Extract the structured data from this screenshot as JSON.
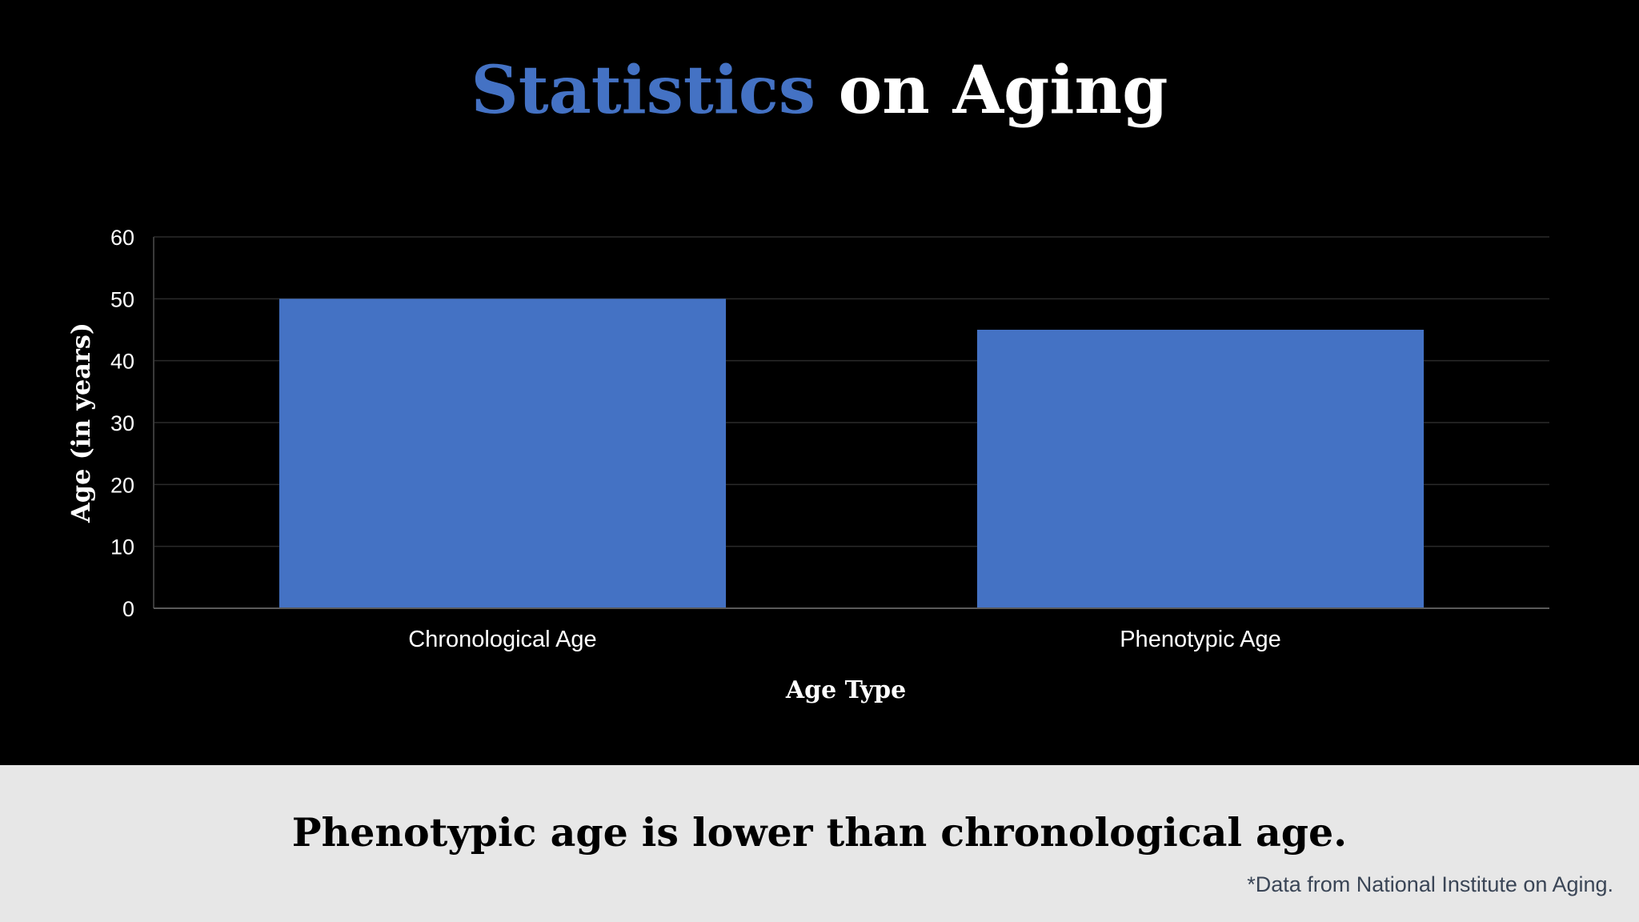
{
  "slide": {
    "title_accent": "Statistics",
    "title_rest": " on Aging",
    "conclusion": "Phenotypic age is lower than chronological age.",
    "source_note": "*Data from National Institute on Aging."
  },
  "colors": {
    "background": "#000000",
    "accent": "#4472c4",
    "bar": "#4472c4",
    "footer_background": "#e7e7e7"
  },
  "chart_data": {
    "type": "bar",
    "categories": [
      "Chronological Age",
      "Phenotypic Age"
    ],
    "values": [
      50,
      45
    ],
    "ylabel": "Age (in years)",
    "xlabel": "Age Type",
    "ylim": [
      0,
      60
    ],
    "yticks": [
      0,
      10,
      20,
      30,
      40,
      50,
      60
    ],
    "grid": true,
    "legend": "none"
  }
}
